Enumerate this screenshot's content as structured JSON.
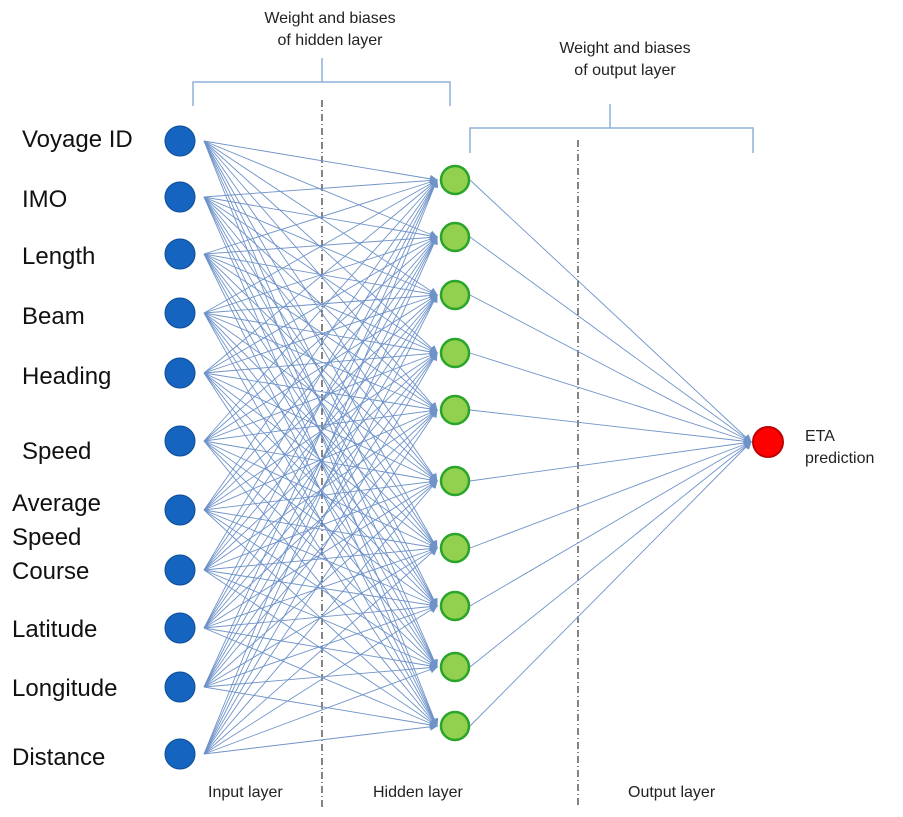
{
  "annotations": {
    "hidden_weights": [
      "Weight and biases",
      "of hidden layer"
    ],
    "output_weights": [
      "Weight and biases",
      "of output layer"
    ]
  },
  "input_features": [
    [
      "Voyage ID"
    ],
    [
      "IMO"
    ],
    [
      "Length"
    ],
    [
      "Beam"
    ],
    [
      "Heading"
    ],
    [
      "Speed"
    ],
    [
      "Average",
      "Speed"
    ],
    [
      "Course"
    ],
    [
      "Latitude"
    ],
    [
      "Longitude"
    ],
    [
      "Distance"
    ]
  ],
  "hidden_node_count": 10,
  "output": {
    "label": [
      "ETA",
      "prediction"
    ]
  },
  "layer_labels": {
    "input": "Input layer",
    "hidden": "Hidden layer",
    "output": "Output layer"
  },
  "colors": {
    "input_node": "#1565c0",
    "hidden_node_fill": "#92d050",
    "hidden_node_stroke": "#2aa52a",
    "output_node_fill": "#ff0000",
    "output_node_stroke": "#c00000",
    "edge": "#6f93c9",
    "bracket": "#8fb0d8",
    "divider": "#333333"
  }
}
